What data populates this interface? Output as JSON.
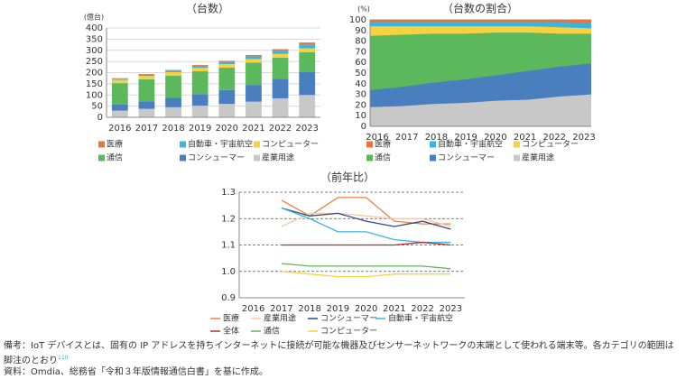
{
  "chart_data": [
    {
      "type": "bar",
      "stacked": true,
      "title": "（台数）",
      "unit": "(億台)",
      "categories": [
        "2016",
        "2017",
        "2018",
        "2019",
        "2020",
        "2021",
        "2022",
        "2023"
      ],
      "series": [
        {
          "name": "産業用途",
          "color": "#c8c8c8",
          "values": [
            30,
            38,
            45,
            52,
            60,
            70,
            85,
            100
          ]
        },
        {
          "name": "コンシューマー",
          "color": "#4a7fbf",
          "values": [
            28,
            34,
            42,
            52,
            62,
            75,
            87,
            102
          ]
        },
        {
          "name": "通信",
          "color": "#5cb85c",
          "values": [
            95,
            98,
            100,
            102,
            100,
            100,
            95,
            90
          ]
        },
        {
          "name": "コンピューター",
          "color": "#f7d23e",
          "values": [
            15,
            15,
            15,
            15,
            16,
            16,
            17,
            17
          ]
        },
        {
          "name": "自動車・宇宙航空",
          "color": "#3bb4e0",
          "values": [
            5,
            6,
            7,
            9,
            10,
            12,
            14,
            17
          ]
        },
        {
          "name": "医療",
          "color": "#e8743b",
          "values": [
            2,
            3,
            3,
            4,
            5,
            6,
            7,
            9
          ]
        }
      ],
      "ylim": [
        0,
        400
      ],
      "yticks": [
        0,
        50,
        100,
        150,
        200,
        250,
        300,
        350,
        400
      ],
      "grid": true
    },
    {
      "type": "area",
      "stacked": true,
      "title": "（台数の割合）",
      "unit": "(%)",
      "categories": [
        "2016",
        "2017",
        "2018",
        "2019",
        "2020",
        "2021",
        "2022",
        "2023"
      ],
      "series": [
        {
          "name": "産業用途",
          "color": "#c8c8c8",
          "values": [
            18,
            19,
            21,
            22,
            24,
            25,
            28,
            30
          ]
        },
        {
          "name": "コンシューマー",
          "color": "#4a7fbf",
          "values": [
            16,
            18,
            20,
            22,
            24,
            27,
            28,
            29
          ]
        },
        {
          "name": "通信",
          "color": "#5cb85c",
          "values": [
            51,
            49,
            46,
            43,
            40,
            36,
            31,
            28
          ]
        },
        {
          "name": "コンピューター",
          "color": "#f7d23e",
          "values": [
            9,
            8,
            7,
            7,
            6,
            6,
            6,
            5
          ]
        },
        {
          "name": "自動車・宇宙航空",
          "color": "#3bb4e0",
          "values": [
            4,
            4,
            4,
            4,
            4,
            4,
            5,
            5
          ]
        },
        {
          "name": "医療",
          "color": "#e8743b",
          "values": [
            2,
            2,
            2,
            2,
            2,
            2,
            2,
            3
          ]
        }
      ],
      "ylim": [
        0,
        100
      ],
      "yticks": [
        0,
        10,
        20,
        30,
        40,
        50,
        60,
        70,
        80,
        90,
        100
      ],
      "grid": false
    },
    {
      "type": "line",
      "title": "（前年比）",
      "categories": [
        "2016",
        "2017",
        "2018",
        "2019",
        "2020",
        "2021",
        "2022",
        "2023"
      ],
      "series": [
        {
          "name": "医療",
          "color": "#f08040",
          "values": [
            null,
            1.27,
            1.21,
            1.28,
            1.28,
            1.19,
            1.18,
            1.18
          ]
        },
        {
          "name": "産業用途",
          "color": "#f5c9a8",
          "values": [
            null,
            1.17,
            1.22,
            1.22,
            1.21,
            1.2,
            1.2,
            1.17
          ]
        },
        {
          "name": "コンシューマー",
          "color": "#2e4a80",
          "values": [
            null,
            1.24,
            1.21,
            1.22,
            1.19,
            1.17,
            1.19,
            1.16
          ]
        },
        {
          "name": "自動車・宇宙航空",
          "color": "#3bb4e0",
          "values": [
            null,
            1.24,
            1.2,
            1.15,
            1.15,
            1.12,
            1.11,
            1.11
          ]
        },
        {
          "name": "全体",
          "color": "#b03030",
          "values": [
            null,
            1.1,
            1.1,
            1.1,
            1.1,
            1.1,
            1.11,
            1.1
          ]
        },
        {
          "name": "通信",
          "color": "#5cb85c",
          "values": [
            null,
            1.03,
            1.02,
            1.02,
            1.02,
            1.02,
            1.02,
            1.01
          ]
        },
        {
          "name": "コンピューター",
          "color": "#f7d23e",
          "values": [
            null,
            1.0,
            0.99,
            0.98,
            0.98,
            0.99,
            0.99,
            0.99
          ]
        }
      ],
      "ylim": [
        0.9,
        1.3
      ],
      "yticks": [
        0.9,
        {
          "value": 1,
          "label": "1.0"
        },
        1.1,
        1.2,
        1.3
      ],
      "grid": true
    }
  ],
  "notes": {
    "remark": "備考：IoT デバイスとは、固有の IP アドレスを持ちインターネットに接続が可能な機器及びセンサーネットワークの末端として使われる端末等。各カテゴリの範囲は脚注のとおり",
    "footnote": "110",
    "source": "資料：Omdia、総務省「令和３年版情報通信白書」を基に作成。"
  }
}
